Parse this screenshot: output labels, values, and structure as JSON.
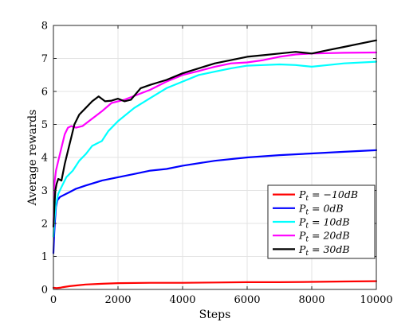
{
  "chart_data": {
    "type": "line",
    "title": "",
    "xlabel": "Steps",
    "ylabel": "Average rewards",
    "xlim": [
      0,
      10000
    ],
    "ylim": [
      0,
      8
    ],
    "xticks": [
      0,
      2000,
      4000,
      6000,
      8000,
      10000
    ],
    "yticks": [
      0,
      1,
      2,
      3,
      4,
      5,
      6,
      7,
      8
    ],
    "grid": true,
    "legend_position": "lower-right",
    "series": [
      {
        "name": "P_t = -10dB",
        "label_base": "P",
        "label_sub": "t",
        "label_rest": " = −10dB",
        "color": "#ff0000",
        "x": [
          0,
          100,
          200,
          300,
          500,
          800,
          1000,
          1500,
          2000,
          3000,
          4000,
          5000,
          6000,
          7000,
          8000,
          9000,
          10000
        ],
        "y": [
          0.05,
          0.04,
          0.05,
          0.07,
          0.1,
          0.13,
          0.15,
          0.17,
          0.19,
          0.2,
          0.2,
          0.21,
          0.22,
          0.22,
          0.23,
          0.24,
          0.25
        ]
      },
      {
        "name": "P_t = 0dB",
        "label_base": "P",
        "label_sub": "t",
        "label_rest": " = 0dB",
        "color": "#0000ff",
        "x": [
          0,
          20,
          50,
          80,
          120,
          200,
          300,
          500,
          700,
          1000,
          1500,
          2000,
          2500,
          3000,
          3500,
          4000,
          5000,
          6000,
          7000,
          8000,
          9000,
          10000
        ],
        "y": [
          1.1,
          1.6,
          2.1,
          2.5,
          2.7,
          2.8,
          2.85,
          2.95,
          3.05,
          3.15,
          3.3,
          3.4,
          3.5,
          3.6,
          3.65,
          3.75,
          3.9,
          4.0,
          4.07,
          4.12,
          4.17,
          4.22
        ]
      },
      {
        "name": "P_t = 10dB",
        "label_base": "P",
        "label_sub": "t",
        "label_rest": " = 10dB",
        "color": "#00ffff",
        "x": [
          0,
          30,
          80,
          150,
          250,
          400,
          600,
          800,
          1000,
          1200,
          1500,
          1700,
          2000,
          2500,
          3000,
          3500,
          4000,
          4500,
          5000,
          5500,
          6000,
          6500,
          7000,
          7500,
          8000,
          8500,
          9000,
          10000
        ],
        "y": [
          1.6,
          2.1,
          2.6,
          2.9,
          3.1,
          3.4,
          3.6,
          3.9,
          4.1,
          4.35,
          4.5,
          4.8,
          5.1,
          5.5,
          5.8,
          6.1,
          6.3,
          6.5,
          6.6,
          6.7,
          6.78,
          6.8,
          6.82,
          6.8,
          6.75,
          6.8,
          6.85,
          6.9
        ]
      },
      {
        "name": "P_t = 20dB",
        "label_base": "P",
        "label_sub": "t",
        "label_rest": " = 20dB",
        "color": "#ff00ff",
        "x": [
          0,
          30,
          80,
          150,
          250,
          350,
          450,
          550,
          700,
          900,
          1100,
          1300,
          1500,
          1800,
          2200,
          2600,
          3000,
          3500,
          4000,
          4500,
          5000,
          5500,
          6000,
          6500,
          7000,
          7500,
          8000,
          9000,
          10000
        ],
        "y": [
          1.9,
          3.2,
          3.6,
          3.9,
          4.3,
          4.7,
          4.9,
          4.95,
          4.9,
          4.95,
          5.1,
          5.25,
          5.4,
          5.65,
          5.75,
          5.9,
          6.05,
          6.3,
          6.5,
          6.62,
          6.75,
          6.85,
          6.88,
          6.95,
          7.05,
          7.12,
          7.15,
          7.17,
          7.18
        ]
      },
      {
        "name": "P_t = 30dB",
        "label_base": "P",
        "label_sub": "t",
        "label_rest": " = 30dB",
        "color": "#000000",
        "x": [
          0,
          30,
          60,
          100,
          150,
          250,
          350,
          450,
          550,
          650,
          800,
          1000,
          1200,
          1400,
          1600,
          1800,
          2000,
          2200,
          2400,
          2700,
          3000,
          3500,
          4000,
          4500,
          5000,
          5500,
          6000,
          6500,
          7000,
          7500,
          8000,
          8500,
          9000,
          9500,
          10000
        ],
        "y": [
          1.9,
          2.5,
          3.0,
          3.2,
          3.35,
          3.3,
          3.8,
          4.2,
          4.6,
          5.0,
          5.3,
          5.5,
          5.7,
          5.85,
          5.7,
          5.72,
          5.78,
          5.7,
          5.75,
          6.1,
          6.2,
          6.35,
          6.55,
          6.7,
          6.85,
          6.95,
          7.05,
          7.1,
          7.15,
          7.2,
          7.15,
          7.25,
          7.35,
          7.45,
          7.55
        ]
      }
    ]
  }
}
